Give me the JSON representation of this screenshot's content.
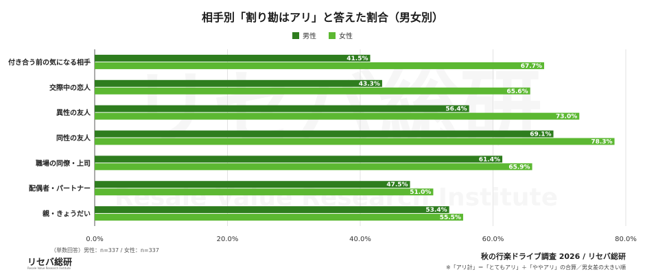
{
  "chart_data": {
    "type": "bar",
    "orientation": "horizontal",
    "title": "相手別「割り勘はアリ」と答えた割合（男女別）",
    "categories": [
      "付き合う前の気になる相手",
      "交際中の恋人",
      "異性の友人",
      "同性の友人",
      "職場の同僚・上司",
      "配偶者・パートナー",
      "親・きょうだい"
    ],
    "series": [
      {
        "name": "男性",
        "color": "#2e7d1e",
        "values": [
          41.5,
          43.3,
          56.4,
          69.1,
          61.4,
          47.5,
          53.4
        ]
      },
      {
        "name": "女性",
        "color": "#5cb832",
        "values": [
          67.7,
          65.6,
          73.0,
          78.3,
          65.9,
          51.0,
          55.5
        ]
      }
    ],
    "xlim": [
      0,
      80
    ],
    "xticks": [
      "0.0%",
      "20.0%",
      "40.0%",
      "60.0%",
      "80.0%"
    ],
    "grid": true,
    "legend": "top-center"
  },
  "footer": {
    "sample_note": "（単数回答）男性：n=337 / 女性：n=337",
    "brand": "リセバ総研",
    "brand_sub": "Resale Value Research Institute",
    "source": "秋の行楽ドライブ調査 2026 / リセバ総研",
    "note": "※「アリ計」＝「とてもアリ」＋「ややアリ」の合算／男女差の大きい順"
  },
  "watermark": {
    "main": "リセバ総研",
    "sub": "Resale Value Research Institute"
  }
}
